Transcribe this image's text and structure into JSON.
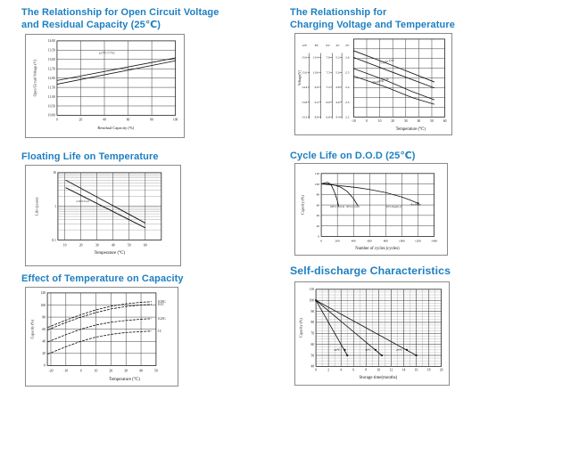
{
  "page": {
    "background": "#ffffff",
    "title_color": "#1e7fc1",
    "line_color": "#141414",
    "grid_color": "#3a3a3a"
  },
  "chart_data": [
    {
      "id": "ocv",
      "type": "line",
      "title_line1": "The Relationship for Open Circuit Voltage",
      "title_line2": "and Residual Capacity (25℃)",
      "xlabel": "Residual Capacity (%)",
      "ylabel": "Open Circuit Voltage (V)",
      "xlim": [
        0,
        100
      ],
      "ylim": [
        10,
        14
      ],
      "xticks": [
        0,
        20,
        40,
        60,
        80,
        100
      ],
      "yticks": [
        10,
        10.5,
        11,
        11.5,
        12,
        12.5,
        13,
        13.5,
        14
      ],
      "ytick_labels": [
        "10.00",
        "10.50",
        "11.00",
        "11.50",
        "12.00",
        "12.50",
        "13.00",
        "13.50",
        "14.00"
      ],
      "series": [
        {
          "name": "upper-line",
          "x": [
            0,
            100
          ],
          "y": [
            11.87,
            13.08
          ]
        },
        {
          "name": "lower-line",
          "x": [
            0,
            100
          ],
          "y": [
            11.67,
            12.93
          ]
        }
      ],
      "annotations": [
        {
          "text": "(25℃/77°F)",
          "x": 42,
          "y": 13.3,
          "fs": 3.6
        }
      ]
    },
    {
      "id": "charging",
      "type": "line",
      "title_line1": "The Relationship for",
      "title_line2": "Charging Voltage and Temperature",
      "xlabel": "Temperature (℃)",
      "ylabel": "Voltage(V)",
      "xlim": [
        -10,
        60
      ],
      "ylim": [
        2.2,
        2.723
      ],
      "xticks": [
        -10,
        0,
        10,
        20,
        30,
        40,
        50,
        60
      ],
      "grid_rows": 8,
      "scales": {
        "headers": [
          "12V",
          "8V",
          "6V",
          "4V",
          "2V"
        ],
        "columns": [
          [
            "15.6",
            "15.0",
            "14.4",
            "13.8",
            "13.2"
          ],
          [
            "10.4",
            "10.0",
            "9.6",
            "9.2",
            "8.8"
          ],
          [
            "7.8",
            "7.5",
            "7.2",
            "6.9",
            "6.6"
          ],
          [
            "5.2",
            "5.0",
            "4.8",
            "4.6",
            "4.4"
          ],
          [
            "2.6",
            "2.5",
            "2.4",
            "2.3",
            "2.2"
          ]
        ]
      },
      "series": [
        {
          "name": "cycle-use-upper",
          "x": [
            -10,
            20,
            52
          ],
          "y": [
            2.645,
            2.545,
            2.435
          ]
        },
        {
          "name": "cycle-use-lower",
          "x": [
            -10,
            20,
            52
          ],
          "y": [
            2.6,
            2.5,
            2.395
          ]
        },
        {
          "name": "floating-use-upper",
          "x": [
            -10,
            15,
            35,
            52
          ],
          "y": [
            2.525,
            2.445,
            2.37,
            2.315
          ]
        },
        {
          "name": "floating-use-lower",
          "x": [
            -10,
            15,
            35,
            52
          ],
          "y": [
            2.475,
            2.4,
            2.33,
            2.285
          ]
        }
      ],
      "annotations": [
        {
          "text": "Cycle Use",
          "x": 16,
          "y": 2.567,
          "rotate": -13,
          "fs": 3.8
        },
        {
          "text": "Floating Use",
          "x": 11,
          "y": 2.437,
          "rotate": -15,
          "fs": 3.8
        }
      ]
    },
    {
      "id": "floating",
      "type": "line",
      "title_line1": "Floating Life on Temperature",
      "xlabel": "Temperature (℃)",
      "ylabel": "Life (years)",
      "xlim": [
        5.7,
        70
      ],
      "ylim": [
        0.1,
        10
      ],
      "yscale": "log",
      "xticks": [
        10,
        20,
        30,
        40,
        50,
        60
      ],
      "yticks": [
        0.1,
        1,
        10
      ],
      "ytick_labels": [
        "0.1",
        "1",
        "10"
      ],
      "grid_y": [
        1
      ],
      "log_minor": [
        0.2,
        0.3,
        0.4,
        0.5,
        0.6,
        0.7,
        0.8,
        0.9,
        2,
        3,
        4,
        5,
        6,
        7,
        8,
        9
      ],
      "series": [
        {
          "name": "band-upper",
          "x": [
            10.5,
            60
          ],
          "y": [
            6.0,
            0.32
          ],
          "w": 1
        },
        {
          "name": "band-lower",
          "x": [
            10.5,
            60
          ],
          "y": [
            3.6,
            0.23
          ],
          "w": 1
        }
      ],
      "annotations": [
        {
          "text": "2.30V/Cell",
          "x": 21,
          "y": 1.35,
          "fs": 3.3
        }
      ]
    },
    {
      "id": "cycle",
      "type": "line",
      "title_line1": "Cycle Life on D.O.D (25℃)",
      "xlabel": "Number of cycles (cycles)",
      "ylabel": "Capacity (%)",
      "xlim": [
        0,
        1400
      ],
      "ylim": [
        0,
        120
      ],
      "xticks": [
        0,
        200,
        400,
        600,
        800,
        1000,
        1200,
        1400
      ],
      "yticks": [
        0,
        20,
        40,
        60,
        80,
        100,
        120
      ],
      "series": [
        {
          "name": "100% D.O.D",
          "x": [
            0,
            40,
            80,
            120,
            160,
            200,
            215
          ],
          "y": [
            100,
            102,
            103,
            99,
            86,
            68,
            57
          ]
        },
        {
          "name": "50% D.O.D",
          "x": [
            0,
            80,
            160,
            240,
            320,
            400,
            455
          ],
          "y": [
            100,
            100,
            98,
            94,
            86,
            72,
            58
          ]
        },
        {
          "name": "30% Depth of discharge",
          "x": [
            0,
            150,
            300,
            450,
            600,
            800,
            1000,
            1100,
            1200
          ],
          "y": [
            100,
            98,
            95.5,
            93,
            89.5,
            83.5,
            75,
            69.5,
            63
          ]
        }
      ],
      "markers": [
        [
          1200,
          63
        ]
      ],
      "annotations": [
        {
          "text": "100% D.O.D",
          "x": 195,
          "y": 55,
          "fs": 3.2
        },
        {
          "text": "50% D.O.D",
          "x": 390,
          "y": 55,
          "fs": 3.2
        },
        {
          "text": "30% Depth of",
          "x": 900,
          "y": 55,
          "fs": 3.2
        },
        {
          "text": "discharge",
          "x": 1170,
          "y": 59,
          "fs": 3.2
        }
      ]
    },
    {
      "id": "temp",
      "type": "line",
      "title_line1": "Effect of Temperature on Capacity",
      "xlabel": "Temperature (℃)",
      "ylabel": "Capacity (%)",
      "xlim": [
        -22.3,
        50
      ],
      "ylim": [
        0,
        120
      ],
      "xticks": [
        -20,
        -10,
        0,
        10,
        20,
        30,
        40,
        50
      ],
      "yticks": [
        0,
        20,
        40,
        60,
        80,
        100,
        120
      ],
      "series": [
        {
          "name": "0.05C",
          "dash": "3,1.2",
          "x": [
            -22,
            -10,
            0,
            10,
            20,
            30,
            40,
            47
          ],
          "y": [
            63,
            75,
            84,
            92,
            98,
            102,
            104.5,
            105.5
          ]
        },
        {
          "name": "0.1C",
          "dash": "3,1.2",
          "x": [
            -22,
            -10,
            0,
            10,
            20,
            30,
            40,
            47
          ],
          "y": [
            59,
            71,
            80,
            87.5,
            93.5,
            97.5,
            100,
            101
          ]
        },
        {
          "name": "0.25C",
          "dash": "3,1.2",
          "x": [
            -22,
            -10,
            0,
            10,
            20,
            30,
            40,
            47
          ],
          "y": [
            39,
            51,
            60,
            67,
            71.5,
            74.5,
            76.5,
            77.5
          ]
        },
        {
          "name": "1C",
          "dash": "3,1.2",
          "x": [
            -22,
            -10,
            0,
            10,
            20,
            30,
            40,
            47
          ],
          "y": [
            19,
            31,
            40,
            47,
            51.5,
            54.5,
            56,
            57
          ]
        }
      ],
      "curve_labels": [
        {
          "text": "0.05C",
          "y": 105.5
        },
        {
          "text": "0.1C",
          "y": 101
        },
        {
          "text": "0.25C",
          "y": 77.5
        },
        {
          "text": "1C",
          "y": 57
        }
      ]
    },
    {
      "id": "selfd",
      "type": "line",
      "title_line1": "Self-discharge Characteristics",
      "xlabel": "Storage time(months)",
      "ylabel": "Capacity (%)",
      "xlim": [
        0,
        20
      ],
      "ylim": [
        40,
        110
      ],
      "xticks": [
        0,
        2,
        4,
        6,
        8,
        10,
        12,
        14,
        16,
        18,
        20
      ],
      "yticks": [
        40,
        50,
        60,
        70,
        80,
        90,
        100,
        110
      ],
      "minor": {
        "x_step": 1,
        "y_step": 2.5
      },
      "series": [
        {
          "name": "40℃",
          "x": [
            0,
            5
          ],
          "y": [
            100,
            50
          ]
        },
        {
          "name": "30℃",
          "x": [
            0,
            10.5
          ],
          "y": [
            100,
            50
          ]
        },
        {
          "name": "25℃",
          "x": [
            0,
            16
          ],
          "y": [
            100,
            50
          ]
        }
      ],
      "markers": [
        [
          0,
          100
        ],
        [
          5,
          50
        ],
        [
          10.5,
          50
        ],
        [
          16,
          50
        ],
        [
          4.6,
          55
        ],
        [
          9.5,
          55
        ],
        [
          14.5,
          55
        ]
      ],
      "annotations": [
        {
          "text": "40℃",
          "x": 3.4,
          "y": 54,
          "fs": 3.3
        },
        {
          "text": "30℃",
          "x": 8.3,
          "y": 54,
          "fs": 3.3
        },
        {
          "text": "25℃",
          "x": 13.3,
          "y": 54,
          "fs": 3.3
        }
      ]
    }
  ]
}
